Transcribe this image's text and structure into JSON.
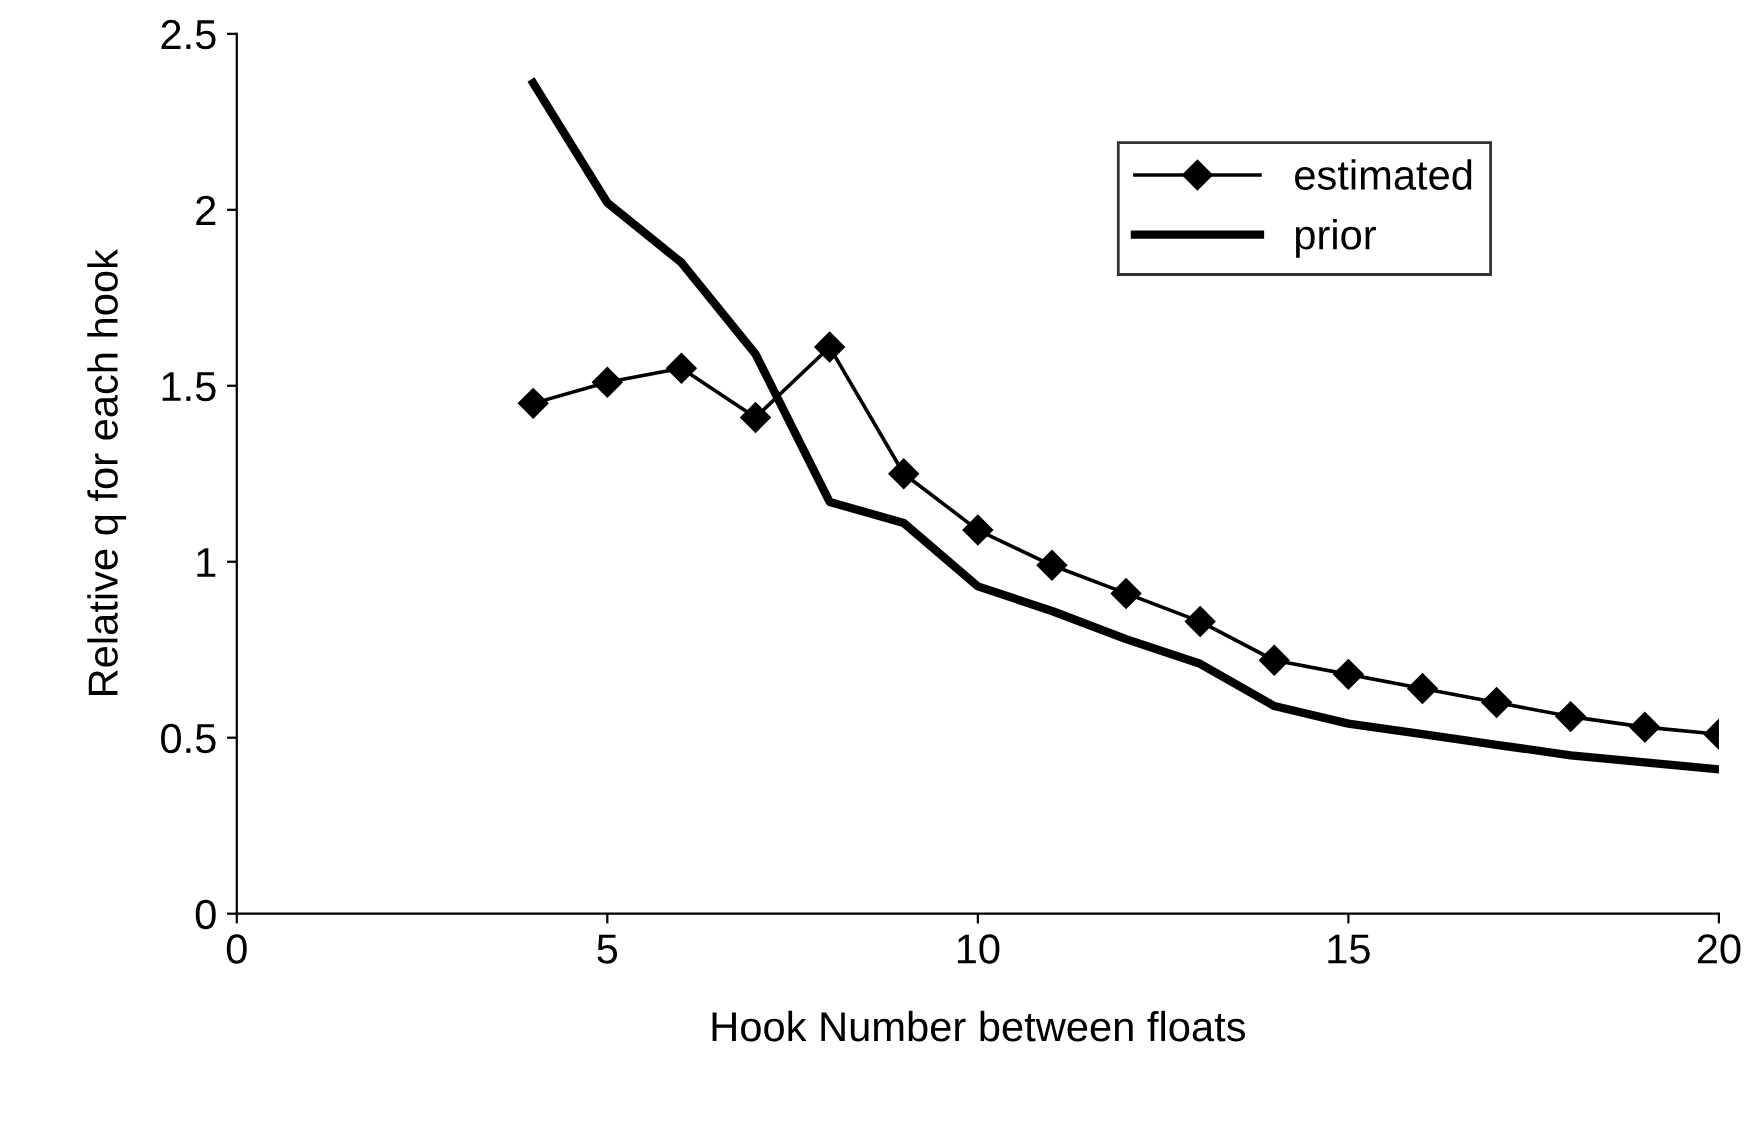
{
  "chart_data": {
    "type": "line",
    "xlabel": "Hook Number between floats",
    "ylabel": "Relative q for each hook",
    "x": [
      4,
      5,
      6,
      7,
      8,
      9,
      10,
      11,
      12,
      13,
      14,
      15,
      16,
      17,
      18,
      19,
      20
    ],
    "series": [
      {
        "name": "estimated",
        "color": "#000000",
        "marker": "diamond",
        "line_style": "solid",
        "values": [
          1.45,
          1.51,
          1.55,
          1.41,
          1.61,
          1.25,
          1.09,
          0.99,
          0.91,
          0.83,
          0.72,
          0.68,
          0.64,
          0.6,
          0.56,
          0.53,
          0.51
        ]
      },
      {
        "name": "prior",
        "color": "#000000",
        "marker": "none",
        "line_style": "solid",
        "values": [
          2.36,
          2.02,
          1.85,
          1.59,
          1.17,
          1.11,
          0.93,
          0.86,
          0.78,
          0.71,
          0.59,
          0.54,
          0.51,
          0.48,
          0.45,
          0.43,
          0.41
        ]
      }
    ],
    "xlim": [
      0,
      20
    ],
    "xticks": [
      0,
      5,
      10,
      15,
      20
    ],
    "ylim": [
      0,
      2.5
    ],
    "yticks": [
      0,
      0.5,
      1,
      1.5,
      2,
      2.5
    ],
    "grid": false,
    "legend": "top right"
  }
}
